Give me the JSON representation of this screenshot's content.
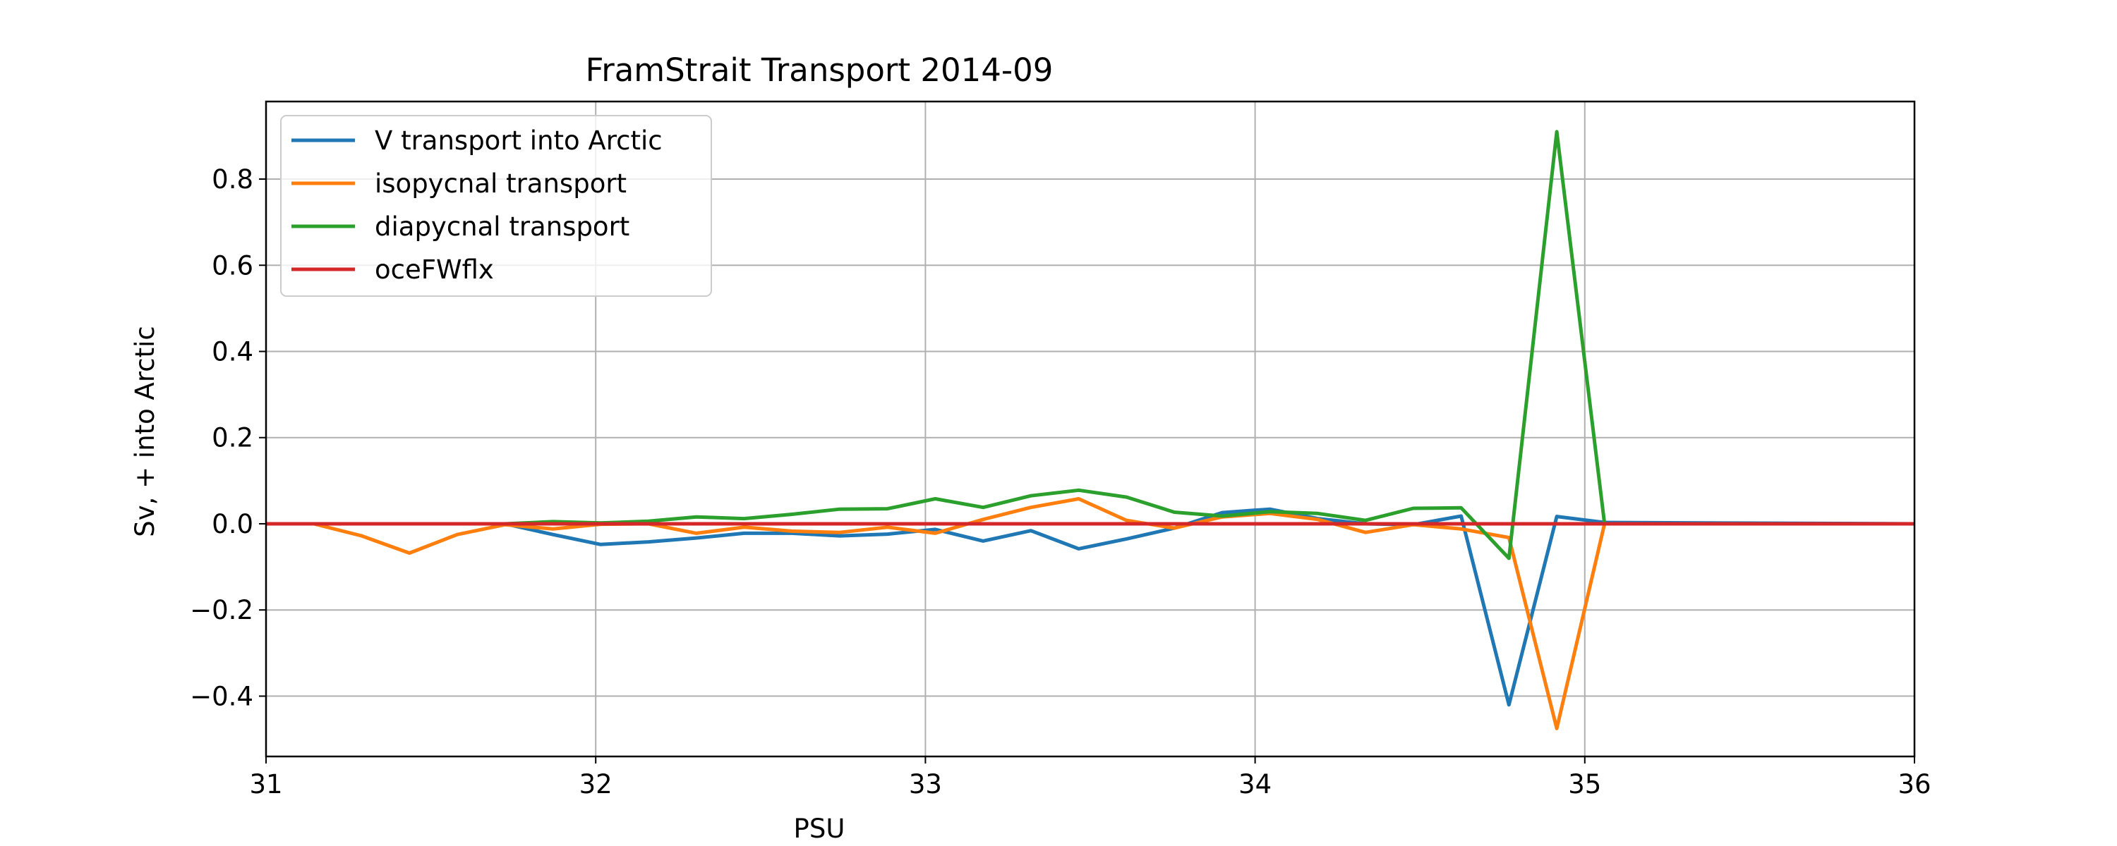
{
  "chart_data": {
    "type": "line",
    "title": "FramStrait Transport 2014-09",
    "xlabel": "PSU",
    "ylabel": "Sv, + into Arctic",
    "xlim": [
      31,
      36
    ],
    "ylim": [
      -0.54,
      0.98
    ],
    "xticks": [
      31,
      32,
      33,
      34,
      35,
      36
    ],
    "xtick_labels": [
      "31",
      "32",
      "33",
      "34",
      "35",
      "36"
    ],
    "yticks": [
      -0.4,
      -0.2,
      0.0,
      0.2,
      0.4,
      0.6,
      0.8
    ],
    "ytick_labels": [
      "−0.4",
      "−0.2",
      "0.0",
      "0.2",
      "0.4",
      "0.6",
      "0.8"
    ],
    "grid": true,
    "legend_position": "top-left",
    "x": [
      31.0,
      31.145,
      31.29,
      31.435,
      31.58,
      31.725,
      31.87,
      32.015,
      32.16,
      32.305,
      32.45,
      32.595,
      32.74,
      32.885,
      33.03,
      33.175,
      33.32,
      33.465,
      33.61,
      33.755,
      33.9,
      34.045,
      34.19,
      34.335,
      34.48,
      34.625,
      34.77,
      34.915,
      35.06,
      36.0
    ],
    "series": [
      {
        "name": "V transport into Arctic",
        "color": "#1f77b4",
        "values": [
          0.0,
          0.0,
          0.0,
          0.0,
          0.0,
          0.0,
          -0.025,
          -0.048,
          -0.042,
          -0.033,
          -0.022,
          -0.022,
          -0.028,
          -0.024,
          -0.013,
          -0.04,
          -0.016,
          -0.058,
          -0.035,
          -0.01,
          0.026,
          0.034,
          0.012,
          0.0,
          -0.002,
          0.018,
          -0.42,
          0.017,
          0.003,
          0.0
        ]
      },
      {
        "name": "isopycnal transport",
        "color": "#ff7f0e",
        "values": [
          0.0,
          0.0,
          -0.028,
          -0.068,
          -0.025,
          -0.002,
          -0.012,
          -0.001,
          0.0,
          -0.022,
          -0.008,
          -0.017,
          -0.02,
          -0.008,
          -0.022,
          0.01,
          0.038,
          0.058,
          0.008,
          -0.01,
          0.016,
          0.024,
          0.01,
          -0.02,
          -0.002,
          -0.012,
          -0.032,
          -0.475,
          0.0,
          0.0
        ]
      },
      {
        "name": "diapycnal transport",
        "color": "#2ca02c",
        "values": [
          0.0,
          0.0,
          0.0,
          0.0,
          0.0,
          0.0,
          0.005,
          0.002,
          0.006,
          0.016,
          0.012,
          0.022,
          0.034,
          0.035,
          0.058,
          0.038,
          0.065,
          0.078,
          0.062,
          0.027,
          0.018,
          0.028,
          0.024,
          0.008,
          0.036,
          0.037,
          -0.08,
          0.91,
          0.0,
          0.0
        ]
      },
      {
        "name": "oceFWflx",
        "color": "#d62728",
        "values": [
          0.0,
          0.0,
          0.0,
          0.0,
          0.0,
          0.0,
          0.0,
          0.0,
          0.0,
          0.0,
          0.0,
          0.0,
          0.0,
          0.0,
          0.0,
          0.0,
          0.0,
          0.0,
          0.0,
          0.0,
          0.0,
          0.0,
          0.0,
          0.0,
          0.0,
          0.0,
          0.0,
          0.0,
          0.0,
          0.0
        ]
      }
    ]
  }
}
